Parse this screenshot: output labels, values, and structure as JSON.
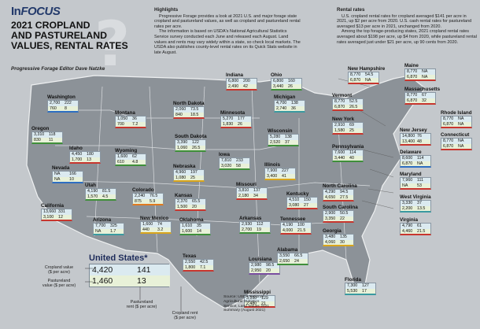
{
  "header": {
    "brand_prefix": "In",
    "brand_word": "FOCUS",
    "title_line1": "2021 CROPLAND",
    "title_line2": "AND PASTURELAND",
    "title_line3": "VALUES, RENTAL RATES",
    "byline": "Progressive Forage Editor Dave Natzke"
  },
  "highlights": {
    "heading": "Highlights",
    "p1": "Progressive Forage provides a look at 2021 U.S. and major forage state cropland and pastureland values, as well as cropland and pastureland rental rates per acre.",
    "p2": "The information is based on USDA's National Agricultural Statistics Service survey conducted each June and released each August. Land values and rents may vary widely within a state, so check local markets. The USDA also publishes county-level rental rates on its Quick Stats website in late August."
  },
  "rental": {
    "heading": "Rental rates",
    "p1": "U.S. cropland rental rates for cropland averaged $141 per acre in 2021, up $2 per acre from 2020. U.S. cash rental rates for pastureland averaged $13 per acre in 2021, unchanged from 2020.",
    "p2": "Among the top forage-producing states, 2021 cropland rental rates averaged about $198 per acre, up $4 from 2020, while pastureland rental rates averaged just under $21 per acre, up 90 cents from 2020."
  },
  "us": {
    "title": "United States*",
    "crop_value": "4,420",
    "crop_rent": "141",
    "pasture_value": "1,460",
    "pasture_rent": "13"
  },
  "legend": {
    "cropland_value": "Cropland value",
    "cropland_value_unit": "($ per acre)",
    "pastureland_value": "Pastureland",
    "pastureland_value_unit": "value ($ per acre)",
    "pastureland_rent": "Pastureland",
    "pastureland_rent_unit": "rent ($ per acre)",
    "cropland_rent": "Cropland rent",
    "cropland_rent_unit": "($ per acre)"
  },
  "source": "Source: USDA National Agricultural Statistics Service, Land Values 2021 Summary (August 2021)",
  "states": [
    {
      "name": "Washington",
      "v": [
        "2,700",
        "222",
        "760",
        "8"
      ]
    },
    {
      "name": "Oregon",
      "v": [
        "3,310",
        "118",
        "830",
        "11"
      ]
    },
    {
      "name": "Idaho",
      "v": [
        "4,450",
        "180",
        "1,700",
        "13"
      ]
    },
    {
      "name": "Montana",
      "v": [
        "1,050",
        "36",
        "700",
        "7.2"
      ]
    },
    {
      "name": "Wyoming",
      "v": [
        "1,600",
        "62",
        "610",
        "4.8"
      ]
    },
    {
      "name": "Nevada",
      "v": [
        "NA",
        "166",
        "NA",
        "10"
      ]
    },
    {
      "name": "Utah",
      "v": [
        "4,190",
        "81.5",
        "1,570",
        "4.5"
      ]
    },
    {
      "name": "California",
      "v": [
        "13,660",
        "331",
        "3,100",
        "12"
      ]
    },
    {
      "name": "Arizona",
      "v": [
        "7,700",
        "325",
        "NA",
        "1.7"
      ]
    },
    {
      "name": "Colorado",
      "v": [
        "2,240",
        "76.5",
        "875",
        "5.9"
      ]
    },
    {
      "name": "New Mexico",
      "v": [
        "1,600",
        "74",
        "440",
        "3.2"
      ]
    },
    {
      "name": "North Dakota",
      "v": [
        "2,060",
        "73.5",
        "840",
        "18.5"
      ]
    },
    {
      "name": "South Dakota",
      "v": [
        "3,390",
        "122",
        "1,060",
        "26.5"
      ]
    },
    {
      "name": "Nebraska",
      "v": [
        "4,960",
        "197",
        "1,080",
        "25"
      ]
    },
    {
      "name": "Kansas",
      "v": [
        "2,370",
        "65.5",
        "1,500",
        "20"
      ]
    },
    {
      "name": "Oklahoma",
      "v": [
        "1,610",
        "35",
        "1,600",
        "14"
      ]
    },
    {
      "name": "Texas",
      "v": [
        "2,550",
        "42.5",
        "1,800",
        "7.1"
      ]
    },
    {
      "name": "Minnesota",
      "v": [
        "5,270",
        "177",
        "1,830",
        "26"
      ]
    },
    {
      "name": "Iowa",
      "v": [
        "7,810",
        "233",
        "3,020",
        "58"
      ]
    },
    {
      "name": "Missouri",
      "v": [
        "3,810",
        "137",
        "2,180",
        "34"
      ]
    },
    {
      "name": "Arkansas",
      "v": [
        "2,930",
        "112",
        "2,700",
        "19"
      ]
    },
    {
      "name": "Louisiana",
      "v": [
        "2,980",
        "98.5",
        "2,950",
        "20"
      ]
    },
    {
      "name": "Wisconsin",
      "v": [
        "5,280",
        "138",
        "2,520",
        "37"
      ]
    },
    {
      "name": "Illinois",
      "v": [
        "7,900",
        "227",
        "3,400",
        "41"
      ]
    },
    {
      "name": "Indiana",
      "v": [
        "6,800",
        "200",
        "2,490",
        "42"
      ]
    },
    {
      "name": "Michigan",
      "v": [
        "4,700",
        "138",
        "2,740",
        "36"
      ]
    },
    {
      "name": "Ohio",
      "v": [
        "6,800",
        "160",
        "3,440",
        "26"
      ]
    },
    {
      "name": "Kentucky",
      "v": [
        "4,510",
        "150",
        "3,080",
        "27"
      ]
    },
    {
      "name": "Tennessee",
      "v": [
        "4,190",
        "100",
        "4,000",
        "21.5"
      ]
    },
    {
      "name": "Alabama",
      "v": [
        "3,550",
        "66.5",
        "2,650",
        "24"
      ]
    },
    {
      "name": "Mississippi",
      "v": [
        "3,150",
        "129",
        "2,480",
        "21"
      ]
    },
    {
      "name": "North Carolina",
      "v": [
        "4,290",
        "94.5",
        "4,650",
        "27.5"
      ]
    },
    {
      "name": "South Carolina",
      "v": [
        "2,900",
        "50.5",
        "3,350",
        "22"
      ]
    },
    {
      "name": "Georgia",
      "v": [
        "3,480",
        "135",
        "4,060",
        "30"
      ]
    },
    {
      "name": "Florida",
      "v": [
        "7,300",
        "127",
        "5,530",
        "17"
      ]
    },
    {
      "name": "Virginia",
      "v": [
        "4,790",
        "61",
        "4,460",
        "21.5"
      ]
    },
    {
      "name": "West Virginia",
      "v": [
        "3,330",
        "37",
        "2,200",
        "13.5"
      ]
    },
    {
      "name": "Maryland",
      "v": [
        "7,960",
        "111",
        "NA",
        "53"
      ]
    },
    {
      "name": "Delaware",
      "v": [
        "8,600",
        "114",
        "6,870",
        "NA"
      ]
    },
    {
      "name": "New Jersey",
      "v": [
        "14,800",
        "76",
        "13,400",
        "48"
      ]
    },
    {
      "name": "Pennsylvania",
      "v": [
        "7,600",
        "114",
        "3,440",
        "40"
      ]
    },
    {
      "name": "New York",
      "v": [
        "2,910",
        "69",
        "1,580",
        "25"
      ]
    },
    {
      "name": "Vermont",
      "v": [
        "8,770",
        "52.5",
        "6,870",
        "26.5"
      ]
    },
    {
      "name": "New Hampshire",
      "v": [
        "8,770",
        "54.5",
        "6,870",
        "NA"
      ]
    },
    {
      "name": "Maine",
      "v": [
        "8,770",
        "NA",
        "6,870",
        "NA"
      ]
    },
    {
      "name": "Massachusetts",
      "v": [
        "8,770",
        "67",
        "6,870",
        "32"
      ]
    },
    {
      "name": "Rhode Island",
      "v": [
        "8,770",
        "NA",
        "6,870",
        "NA"
      ]
    },
    {
      "name": "Connecticut",
      "v": [
        "8,770",
        "NA",
        "6,870",
        "NA"
      ]
    }
  ]
}
